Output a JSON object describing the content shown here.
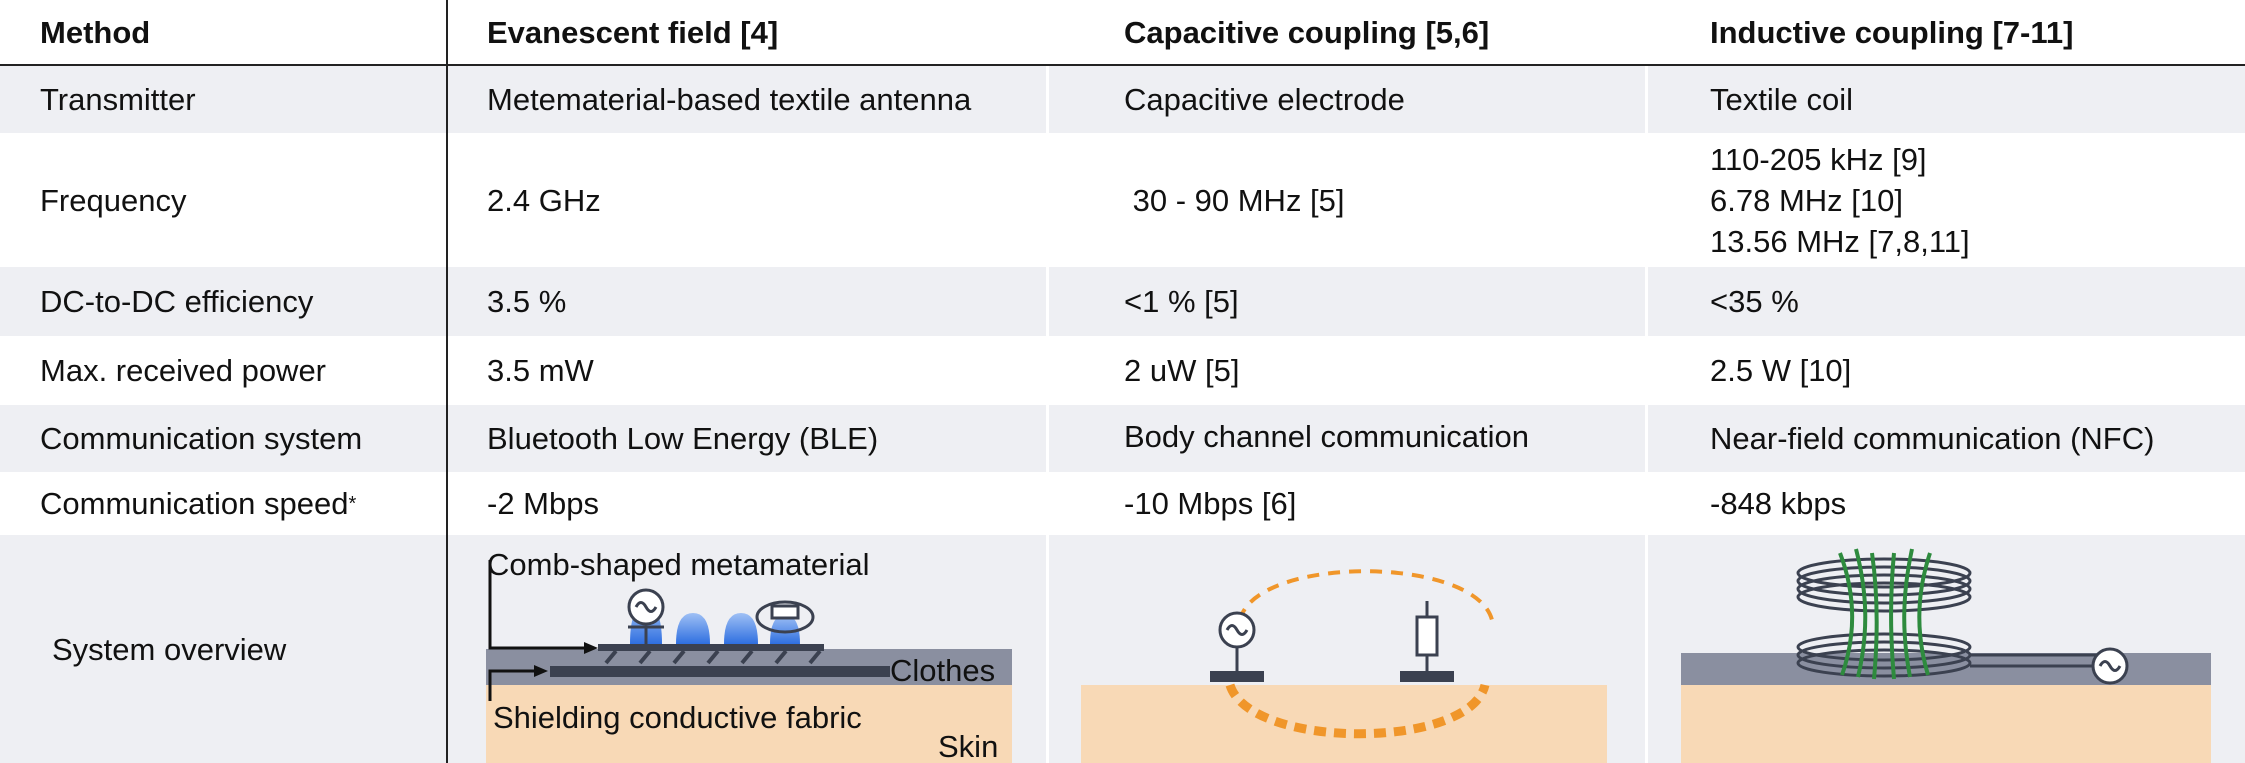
{
  "headers": {
    "method": "Method",
    "evanescent": "Evanescent field [4]",
    "capacitive": "Capacitive coupling [5,6]",
    "inductive": "Inductive coupling [7-11]"
  },
  "rows": {
    "transmitter": {
      "label": "Transmitter",
      "evanescent": "Metematerial-based textile antenna",
      "capacitive": "Capacitive electrode",
      "inductive": "Textile coil"
    },
    "frequency": {
      "label": "Frequency",
      "evanescent": "2.4 GHz",
      "capacitive": " 30 - 90 MHz [5]",
      "inductive": [
        "110-205 kHz [9]",
        "6.78 MHz [10]",
        "13.56 MHz [7,8,11]"
      ]
    },
    "efficiency": {
      "label": "DC-to-DC efficiency",
      "evanescent": "3.5 %",
      "capacitive": "<1 % [5]",
      "inductive": "<35 %"
    },
    "power": {
      "label": "Max. received power",
      "evanescent": "3.5 mW",
      "capacitive": "2 uW [5]",
      "inductive": "2.5 W [10]"
    },
    "communication": {
      "label": "Communication system",
      "evanescent": "Bluetooth Low Energy (BLE)",
      "capacitive": "Body channel communication",
      "inductive": "Near-field communication (NFC)"
    },
    "speed": {
      "label": "Communication speed",
      "label_mark": "*",
      "evanescent": "-2 Mbps",
      "capacitive": "-10 Mbps [6]",
      "inductive": "-848 kbps"
    },
    "overview": {
      "label": "System overview",
      "evanescent_labels": {
        "metamaterial": "Comb-shaped metamaterial",
        "clothes": "Clothes",
        "shielding": "Shielding conductive fabric",
        "skin": "Skin"
      }
    }
  },
  "colors": {
    "row_grey": "#eeeff3",
    "clothes": "#8a8fa0",
    "skin": "#f8d9b6",
    "metamaterial_blue": "#2f6fe0",
    "dashed_orange": "#f0962a",
    "coil_green": "#2e8b3e",
    "dark_gray": "#3b4150"
  }
}
